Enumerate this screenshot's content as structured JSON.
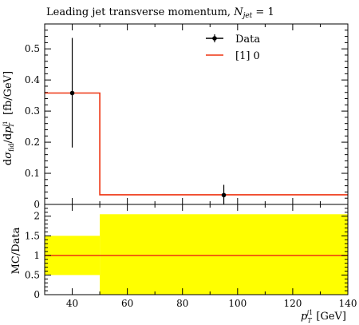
{
  "chart_data": [
    {
      "type": "line",
      "title": "Leading jet transverse momentum, N_jet = 1",
      "title_main": "Leading jet transverse momentum, ",
      "title_var": "N",
      "title_sub": "jet",
      "title_tail": " = 1",
      "ylabel": "dσfid/dpTj1 [fb/GeV]",
      "xlim": [
        30,
        140
      ],
      "ylim": [
        0,
        0.58
      ],
      "y_ticks": [
        0,
        0.1,
        0.2,
        0.3,
        0.4,
        0.5
      ],
      "y_tick_labels": [
        "0",
        "0.1",
        "0.2",
        "0.3",
        "0.4",
        "0.5"
      ],
      "legend": {
        "position": "top-right",
        "entries": [
          "Data",
          "[1] 0"
        ]
      },
      "series": [
        {
          "name": "Data",
          "kind": "points",
          "color": "#000000",
          "points": [
            {
              "x": 40,
              "y": 0.358,
              "y_low": 0.183,
              "y_high": 0.535
            },
            {
              "x": 95,
              "y": 0.03,
              "y_low": 0.0,
              "y_high": 0.063
            }
          ]
        },
        {
          "name": "[1] 0",
          "kind": "histogram",
          "color": "#ee3311",
          "bins": [
            {
              "x_low": 30,
              "x_high": 50,
              "y": 0.358
            },
            {
              "x_low": 50,
              "x_high": 140,
              "y": 0.031
            }
          ]
        }
      ]
    },
    {
      "type": "area",
      "ylabel": "MC/Data",
      "xlabel": "pTj1 [GeV]",
      "xlim": [
        30,
        140
      ],
      "ylim": [
        0,
        2.3
      ],
      "y_ticks": [
        0,
        0.5,
        1,
        1.5,
        2
      ],
      "y_tick_labels": [
        "0",
        "0.5",
        "1",
        "1.5",
        "2"
      ],
      "x_ticks": [
        40,
        60,
        80,
        100,
        120,
        140
      ],
      "x_tick_labels": [
        "40",
        "60",
        "80",
        "100",
        "120",
        "140"
      ],
      "band_color": "#ffff00",
      "band": [
        {
          "x_low": 30,
          "x_high": 50,
          "y_low": 0.5,
          "y_high": 1.5
        },
        {
          "x_low": 50,
          "x_high": 140,
          "y_low": 0,
          "y_high": 2.05
        }
      ],
      "ratio_line": {
        "y": 1,
        "color": "#ee3311"
      }
    }
  ]
}
